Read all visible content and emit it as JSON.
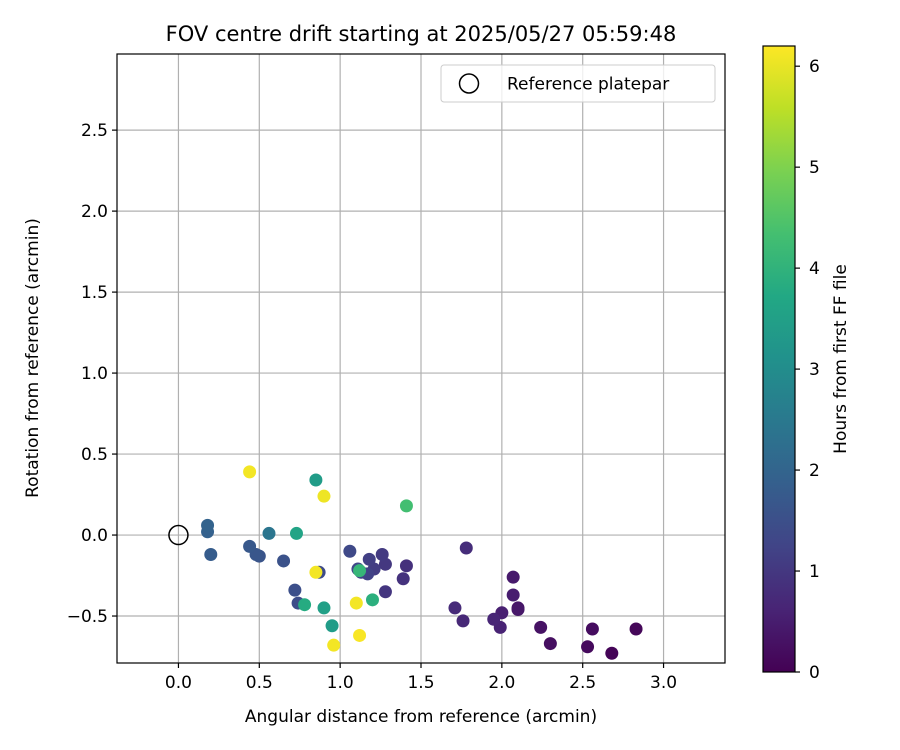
{
  "chart_data": {
    "type": "scatter",
    "title": "FOV centre drift starting at 2025/05/27 05:59:48",
    "xlabel": "Angular distance from reference (arcmin)",
    "ylabel": "Rotation from reference (arcmin)",
    "xlim": [
      -0.38,
      3.38
    ],
    "ylim": [
      -0.79,
      2.97
    ],
    "xticks": [
      "0.0",
      "0.5",
      "1.0",
      "1.5",
      "2.0",
      "2.5",
      "3.0"
    ],
    "xtick_values": [
      0,
      0.5,
      1.0,
      1.5,
      2.0,
      2.5,
      3.0
    ],
    "yticks": [
      "−0.5",
      "0.0",
      "0.5",
      "1.0",
      "1.5",
      "2.0",
      "2.5"
    ],
    "ytick_values": [
      -0.5,
      0,
      0.5,
      1.0,
      1.5,
      2.0,
      2.5
    ],
    "grid": true,
    "legend": {
      "position": "top-right",
      "entries": [
        "Reference platepar"
      ]
    },
    "reference_point": {
      "x": 0.0,
      "y": 0.0
    },
    "colorbar": {
      "label": "Hours from first FF file",
      "range": [
        0,
        6.2
      ],
      "ticks": [
        "0",
        "1",
        "2",
        "3",
        "4",
        "5",
        "6"
      ],
      "tick_values": [
        0,
        1,
        2,
        3,
        4,
        5,
        6
      ],
      "colormap": "viridis"
    },
    "points": [
      {
        "x": 2.68,
        "y": -0.73,
        "c": 0.05
      },
      {
        "x": 2.83,
        "y": -0.58,
        "c": 0.1
      },
      {
        "x": 2.53,
        "y": -0.69,
        "c": 0.15
      },
      {
        "x": 2.56,
        "y": -0.58,
        "c": 0.2
      },
      {
        "x": 2.3,
        "y": -0.67,
        "c": 0.25
      },
      {
        "x": 2.24,
        "y": -0.57,
        "c": 0.3
      },
      {
        "x": 2.1,
        "y": -0.45,
        "c": 0.35
      },
      {
        "x": 2.1,
        "y": -0.46,
        "c": 0.4
      },
      {
        "x": 2.07,
        "y": -0.26,
        "c": 0.45
      },
      {
        "x": 2.07,
        "y": -0.37,
        "c": 0.5
      },
      {
        "x": 2.0,
        "y": -0.48,
        "c": 0.55
      },
      {
        "x": 1.99,
        "y": -0.57,
        "c": 0.6
      },
      {
        "x": 1.95,
        "y": -0.52,
        "c": 0.65
      },
      {
        "x": 1.76,
        "y": -0.53,
        "c": 0.7
      },
      {
        "x": 1.71,
        "y": -0.45,
        "c": 0.75
      },
      {
        "x": 1.78,
        "y": -0.08,
        "c": 0.8
      },
      {
        "x": 1.41,
        "y": -0.19,
        "c": 0.85
      },
      {
        "x": 1.39,
        "y": -0.27,
        "c": 0.9
      },
      {
        "x": 1.28,
        "y": -0.35,
        "c": 0.95
      },
      {
        "x": 1.28,
        "y": -0.18,
        "c": 1.0
      },
      {
        "x": 1.26,
        "y": -0.12,
        "c": 1.05
      },
      {
        "x": 1.21,
        "y": -0.21,
        "c": 1.1
      },
      {
        "x": 1.18,
        "y": -0.15,
        "c": 1.15
      },
      {
        "x": 1.17,
        "y": -0.24,
        "c": 1.2
      },
      {
        "x": 1.13,
        "y": -0.23,
        "c": 1.25
      },
      {
        "x": 1.11,
        "y": -0.21,
        "c": 1.3
      },
      {
        "x": 1.06,
        "y": -0.1,
        "c": 1.35
      },
      {
        "x": 0.87,
        "y": -0.23,
        "c": 1.4
      },
      {
        "x": 0.74,
        "y": -0.42,
        "c": 1.45
      },
      {
        "x": 0.72,
        "y": -0.34,
        "c": 1.5
      },
      {
        "x": 0.65,
        "y": -0.16,
        "c": 1.55
      },
      {
        "x": 0.5,
        "y": -0.13,
        "c": 1.6
      },
      {
        "x": 0.48,
        "y": -0.12,
        "c": 1.65
      },
      {
        "x": 0.44,
        "y": -0.07,
        "c": 1.7
      },
      {
        "x": 0.2,
        "y": -0.12,
        "c": 1.8
      },
      {
        "x": 0.18,
        "y": 0.02,
        "c": 1.9
      },
      {
        "x": 0.18,
        "y": 0.06,
        "c": 1.95
      },
      {
        "x": 0.56,
        "y": 0.01,
        "c": 2.4
      },
      {
        "x": 0.85,
        "y": 0.34,
        "c": 3.4
      },
      {
        "x": 0.73,
        "y": 0.01,
        "c": 3.6
      },
      {
        "x": 0.9,
        "y": -0.45,
        "c": 3.5
      },
      {
        "x": 0.95,
        "y": -0.56,
        "c": 3.4
      },
      {
        "x": 0.78,
        "y": -0.43,
        "c": 3.8
      },
      {
        "x": 1.2,
        "y": -0.4,
        "c": 3.9
      },
      {
        "x": 1.12,
        "y": -0.22,
        "c": 4.1
      },
      {
        "x": 1.41,
        "y": 0.18,
        "c": 4.3
      },
      {
        "x": 0.44,
        "y": 0.39,
        "c": 6.1
      },
      {
        "x": 0.9,
        "y": 0.24,
        "c": 6.05
      },
      {
        "x": 0.85,
        "y": -0.23,
        "c": 6.1
      },
      {
        "x": 1.1,
        "y": -0.42,
        "c": 6.1
      },
      {
        "x": 1.12,
        "y": -0.62,
        "c": 6.15
      },
      {
        "x": 0.96,
        "y": -0.68,
        "c": 6.1
      }
    ]
  }
}
